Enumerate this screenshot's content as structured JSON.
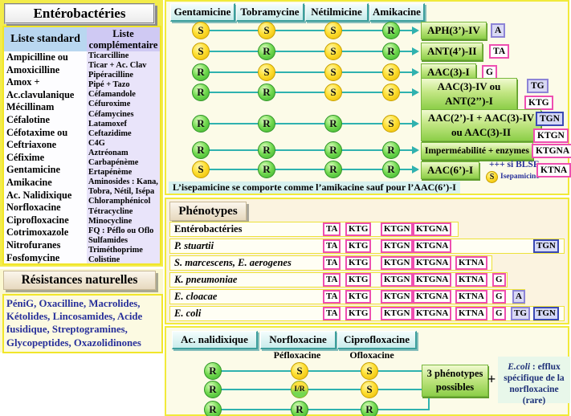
{
  "left": {
    "title": "Entérobactéries",
    "standard_header": "Liste standard",
    "standard_items": [
      "Ampicilline ou",
      "Amoxicilline",
      "Amox +",
      "Ac.clavulanique",
      "Mécillinam",
      "Céfalotine",
      "Céfotaxime ou",
      "Ceftriaxone",
      "Céfixime",
      "Gentamicine",
      "Amikacine",
      "Ac. Nalidixique",
      "Norfloxacine",
      "Ciprofloxacine",
      "Cotrimoxazole",
      "Nitrofuranes",
      "Fosfomycine"
    ],
    "complementary_header": "Liste complémentaire",
    "complementary_items": [
      "Ticarcilline",
      "Ticar + Ac. Clav",
      "Pipéracilline",
      "Pipé + Tazo",
      "Céfamandole",
      "Céfuroxime",
      "Céfamycines",
      "Latamoxef",
      "Ceftazidime",
      "C4G",
      "Aztréonam",
      "Carbapénème",
      "Ertapénème",
      "Aminosides : Kana,",
      "Tobra, Nétil, Isépa",
      "Chloramphénicol",
      "Tétracycline",
      "Minocycline",
      "FQ : Péflo ou Oflo",
      "Sulfamides",
      "Triméthoprime",
      "Colistine"
    ],
    "natural_title": "Résistances naturelles",
    "natural_text": "PéniG, Oxacilline, Macrolides, Kétolides, Lincosamides, Acide fusidique, Streptogramines, Glycopeptides, Oxazolidinones"
  },
  "ag": {
    "columns": [
      "Gentamicine",
      "Tobramycine",
      "Nétilmicine",
      "Amikacine"
    ],
    "rows": [
      {
        "values": [
          "S",
          "S",
          "S",
          "R"
        ],
        "mechanism": "APH(3’)-IV",
        "codes": [
          {
            "label": "A"
          }
        ]
      },
      {
        "values": [
          "S",
          "R",
          "S",
          "R"
        ],
        "mechanism": "ANT(4’)-II",
        "codes": [
          {
            "label": "TA"
          }
        ]
      },
      {
        "values": [
          "R",
          "S",
          "S",
          "S"
        ],
        "mechanism": "AAC(3)-I",
        "codes": [
          {
            "label": "G"
          }
        ]
      },
      {
        "values": [
          "R",
          "R",
          "S",
          "S"
        ],
        "mechanism": "AAC(3)-IV ou ANT(2’’)-I",
        "codes": [
          {
            "label": "TG"
          },
          {
            "label": "KTG"
          }
        ]
      },
      {
        "values": [
          "R",
          "R",
          "R",
          "S"
        ],
        "mechanism": "AAC(2’)-I + AAC(3)-IV ou AAC(3)-II",
        "codes": [
          {
            "label": "TGN"
          },
          {
            "label": "KTGN"
          }
        ]
      },
      {
        "values": [
          "R",
          "R",
          "R",
          "R"
        ],
        "mechanism": "Imperméabilité + enzymes",
        "codes": [
          {
            "label": "KTGNA"
          }
        ]
      },
      {
        "values": [
          "S",
          "R",
          "R",
          "R"
        ],
        "mechanism": "AAC(6’)-I",
        "blse": "+++ si BLSE",
        "isepa_s": "S",
        "isepa": "Isepamicine",
        "codes": [
          {
            "label": "KTNA"
          }
        ]
      }
    ],
    "note": "L’isepamicine se comporte comme l’amikacine sauf pour l’AAC(6’)-I"
  },
  "ph": {
    "title": "Phénotypes",
    "rows": [
      {
        "name": "Entérobactéries",
        "boxes": [
          "TA",
          "KTG",
          "KTGN",
          "KTGNA"
        ]
      },
      {
        "name": "P. stuartii",
        "boxes": [
          "TA",
          "KTG",
          "KTGN",
          "KTGNA",
          "TGN"
        ]
      },
      {
        "name": "S. marcescens, E. aerogenes",
        "boxes": [
          "TA",
          "KTG",
          "KTGN",
          "KTGNA",
          "KTNA"
        ]
      },
      {
        "name": "K. pneumoniae",
        "boxes": [
          "TA",
          "KTG",
          "KTGN",
          "KTGNA",
          "KTNA",
          "G"
        ]
      },
      {
        "name": "E. cloacae",
        "boxes": [
          "TA",
          "KTG",
          "KTGN",
          "KTGNA",
          "KTNA",
          "G",
          "A"
        ]
      },
      {
        "name": "E. coli",
        "boxes": [
          "TA",
          "KTG",
          "KTGN",
          "KTGNA",
          "KTNA",
          "G",
          "TG",
          "TGN"
        ]
      }
    ]
  },
  "fq": {
    "columns": [
      "Ac. nalidixique",
      "Norfloxacine",
      "Ciprofloxacine"
    ],
    "sublabel_norflo": "Péfloxacine",
    "sublabel_cipro": "Ofloxacine",
    "rows": [
      [
        "R",
        "S",
        "S"
      ],
      [
        "R",
        "I/R",
        "S"
      ],
      [
        "R",
        "R",
        "R"
      ]
    ],
    "result": "3 phénotypes possibles",
    "plus": "+",
    "note_species": "E.coli",
    "note_text": " : efflux spécifique de la norfloxacine (rare)"
  },
  "colors": {
    "sensitive_yellow": "#ffdf33",
    "resistant_green": "#70d84e",
    "line_teal": "#2fb2af",
    "code_magenta_border": "#ee4fb0",
    "code_blue_border": "#3b49b5",
    "code_lavender_bg": "#d9d9f4",
    "mechanism_green": "#8cce48",
    "panel_yellow_border": "#f1ea3a"
  }
}
